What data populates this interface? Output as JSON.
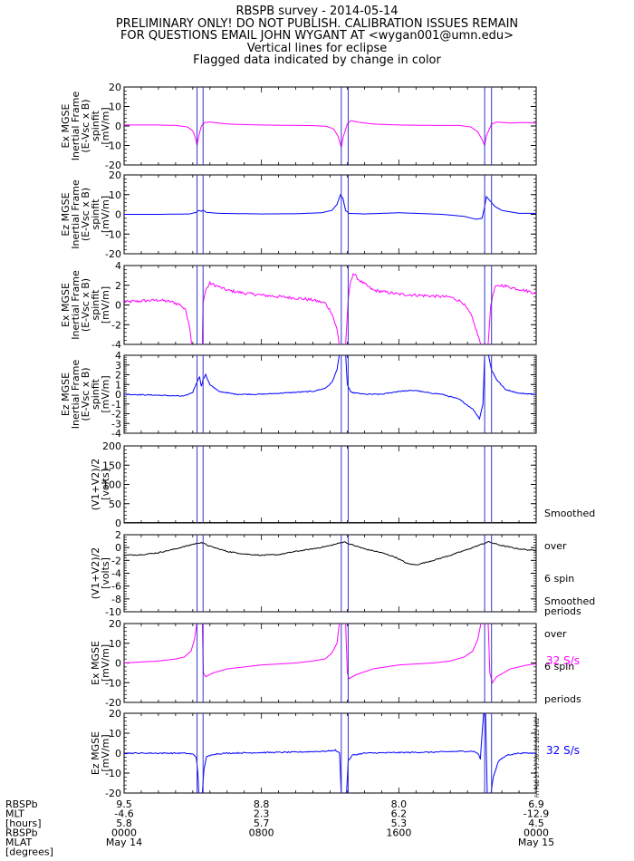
{
  "header": {
    "lines": [
      "RBSPB survey - 2014-05-14",
      "PRELIMINARY ONLY! DO NOT PUBLISH. CALIBRATION ISSUES REMAIN",
      "FOR QUESTIONS EMAIL JOHN WYGANT AT <wygan001@umn.edu>",
      "Vertical lines for eclipse",
      "Flagged data indicated by change in color"
    ]
  },
  "colors": {
    "magenta": "#ff00ff",
    "blue": "#0000ff",
    "black": "#000000",
    "eclipse": "#3333cc"
  },
  "side_notes": {
    "smoothed_1": [
      "Smoothed",
      "over",
      "6 spin",
      "periods"
    ],
    "smoothed_2": [
      "Smoothed",
      "over",
      "6 spin",
      "periods"
    ],
    "rate_1": "32 S/s",
    "rate_2": "32 S/s"
  },
  "stamp": "Fri Feb 27 17:50:31 2015 v02",
  "bottom_labels": [
    "RBSPb",
    "MLT",
    "[hours]",
    "RBSPb",
    "MLAT",
    "[degrees]"
  ],
  "chart_data": {
    "type": "line",
    "x_unit": "hours UT on 2014-05-14",
    "xlim": [
      0,
      24
    ],
    "eclipses": [
      [
        4.25,
        4.6
      ],
      [
        12.65,
        13.05
      ],
      [
        21.0,
        21.4
      ]
    ],
    "x_ticks": [
      {
        "x": 0,
        "l1": "9.5",
        "l2": "-4.6",
        "l3": "5.8",
        "l4": "0000",
        "l5": "May 14"
      },
      {
        "x": 8,
        "l1": "8.8",
        "l2": "2.3",
        "l3": "5.7",
        "l4": "0800",
        "l5": ""
      },
      {
        "x": 16,
        "l1": "8.0",
        "l2": "6.2",
        "l3": "5.3",
        "l4": "1600",
        "l5": ""
      },
      {
        "x": 24,
        "l1": "6.9",
        "l2": "-12.9",
        "l3": "4.5",
        "l4": "0000",
        "l5": "May 15"
      }
    ],
    "panels": [
      {
        "ylabel": [
          "Ex MGSE",
          "Inertial Frame",
          "(E-Vsc x B)",
          "spinfit",
          "[mV/m]"
        ],
        "ylim": [
          -20,
          20
        ],
        "yticks": [
          -20,
          -10,
          0,
          10,
          20
        ],
        "color": "#ff00ff",
        "points": [
          [
            0,
            0.5
          ],
          [
            1,
            0.5
          ],
          [
            2,
            0.5
          ],
          [
            3,
            0.3
          ],
          [
            3.7,
            -0.5
          ],
          [
            4.0,
            -2.5
          ],
          [
            4.15,
            -6
          ],
          [
            4.25,
            -10
          ],
          [
            4.35,
            -5
          ],
          [
            4.5,
            0
          ],
          [
            4.7,
            1.8
          ],
          [
            5.0,
            2
          ],
          [
            6,
            1
          ],
          [
            8,
            0.5
          ],
          [
            10,
            0.3
          ],
          [
            11,
            0.2
          ],
          [
            11.8,
            -0.2
          ],
          [
            12.2,
            -1.5
          ],
          [
            12.45,
            -5
          ],
          [
            12.65,
            -11
          ],
          [
            12.75,
            -6
          ],
          [
            13.0,
            1
          ],
          [
            13.2,
            2.8
          ],
          [
            13.6,
            2
          ],
          [
            14.5,
            1
          ],
          [
            16,
            0.5
          ],
          [
            18,
            0.3
          ],
          [
            19.5,
            0.3
          ],
          [
            20.2,
            -0.5
          ],
          [
            20.6,
            -3
          ],
          [
            20.85,
            -7
          ],
          [
            21.0,
            -10
          ],
          [
            21.1,
            -5
          ],
          [
            21.4,
            1
          ],
          [
            21.7,
            2
          ],
          [
            22.5,
            1.5
          ],
          [
            23.3,
            1.8
          ],
          [
            24,
            1.5
          ]
        ]
      },
      {
        "ylabel": [
          "Ez MGSE",
          "Inertial Frame",
          "(E-Vsc x B)",
          "spinfit",
          "[mV/m]"
        ],
        "ylim": [
          -20,
          20
        ],
        "yticks": [
          -20,
          -10,
          0,
          10,
          20
        ],
        "color": "#0000ff",
        "points": [
          [
            0,
            0
          ],
          [
            2,
            0
          ],
          [
            3.8,
            0.2
          ],
          [
            4.2,
            1
          ],
          [
            4.35,
            2
          ],
          [
            4.5,
            1.5
          ],
          [
            4.6,
            2.2
          ],
          [
            4.8,
            1
          ],
          [
            5.5,
            0.5
          ],
          [
            8,
            0.2
          ],
          [
            10,
            0.3
          ],
          [
            11.5,
            0.8
          ],
          [
            12.1,
            2
          ],
          [
            12.4,
            5
          ],
          [
            12.6,
            10
          ],
          [
            12.75,
            8
          ],
          [
            12.9,
            2
          ],
          [
            13.1,
            0.5
          ],
          [
            14,
            0.2
          ],
          [
            16,
            0.8
          ],
          [
            17,
            0.5
          ],
          [
            18.5,
            0
          ],
          [
            19.8,
            -1
          ],
          [
            20.5,
            -2.5
          ],
          [
            20.85,
            -2
          ],
          [
            21.0,
            4
          ],
          [
            21.1,
            9
          ],
          [
            21.3,
            7
          ],
          [
            21.6,
            4
          ],
          [
            22,
            2
          ],
          [
            23,
            0.5
          ],
          [
            24,
            0.5
          ]
        ]
      },
      {
        "ylabel": [
          "Ex MGSE",
          "Inertial Frame",
          "(E-Vsc x B)",
          "spinfit",
          "[mV/m]"
        ],
        "ylim": [
          -4,
          4
        ],
        "yticks": [
          -4,
          -2,
          0,
          2,
          4
        ],
        "color": "#ff00ff",
        "noise": 0.15,
        "points": [
          [
            0,
            0.3
          ],
          [
            1,
            0.4
          ],
          [
            2,
            0.5
          ],
          [
            2.8,
            0.3
          ],
          [
            3.3,
            0
          ],
          [
            3.6,
            -0.6
          ],
          [
            3.8,
            -2
          ],
          [
            3.95,
            -4.2
          ],
          [
            4.2,
            -4.2
          ],
          [
            4.55,
            -4.2
          ],
          [
            4.6,
            0.2
          ],
          [
            4.75,
            1.5
          ],
          [
            5.0,
            2.2
          ],
          [
            5.3,
            2
          ],
          [
            6,
            1.5
          ],
          [
            7,
            1.2
          ],
          [
            8,
            1
          ],
          [
            10,
            0.7
          ],
          [
            11,
            0.5
          ],
          [
            11.7,
            0.2
          ],
          [
            12.1,
            -0.8
          ],
          [
            12.4,
            -2.5
          ],
          [
            12.55,
            -4.2
          ],
          [
            12.9,
            -4.2
          ],
          [
            13.05,
            0.5
          ],
          [
            13.2,
            2.5
          ],
          [
            13.35,
            3.2
          ],
          [
            13.7,
            2.5
          ],
          [
            14.5,
            1.5
          ],
          [
            16,
            1.1
          ],
          [
            18,
            0.9
          ],
          [
            19,
            0.8
          ],
          [
            19.7,
            0.3
          ],
          [
            20.2,
            -1
          ],
          [
            20.6,
            -3
          ],
          [
            20.8,
            -4.2
          ],
          [
            21.2,
            -4.2
          ],
          [
            21.35,
            0
          ],
          [
            21.6,
            1.8
          ],
          [
            22,
            2
          ],
          [
            23,
            1.6
          ],
          [
            24,
            1.2
          ]
        ]
      },
      {
        "ylabel": [
          "Ez MGSE",
          "Inertial Frame",
          "(E-Vsc x B)",
          "spinfit",
          "[mV/m]"
        ],
        "ylim": [
          -4,
          4
        ],
        "yticks": [
          -4,
          -3,
          -2,
          -1,
          0,
          1,
          2,
          3,
          4
        ],
        "color": "#0000ff",
        "noise": 0.05,
        "points": [
          [
            0,
            0
          ],
          [
            2,
            -0.1
          ],
          [
            3.5,
            -0.2
          ],
          [
            4.0,
            0.2
          ],
          [
            4.25,
            1.3
          ],
          [
            4.4,
            1.8
          ],
          [
            4.5,
            0.8
          ],
          [
            4.6,
            1.5
          ],
          [
            4.75,
            2
          ],
          [
            5.0,
            1
          ],
          [
            5.5,
            0.3
          ],
          [
            6.5,
            0
          ],
          [
            8,
            0
          ],
          [
            10,
            0.2
          ],
          [
            11,
            0.3
          ],
          [
            11.7,
            0.6
          ],
          [
            12.1,
            1.2
          ],
          [
            12.4,
            2.5
          ],
          [
            12.55,
            4.2
          ],
          [
            12.9,
            4.2
          ],
          [
            13.0,
            1
          ],
          [
            13.2,
            0.2
          ],
          [
            14,
            0
          ],
          [
            15,
            0
          ],
          [
            16,
            0.3
          ],
          [
            17,
            0.4
          ],
          [
            17.5,
            0.2
          ],
          [
            18.5,
            0
          ],
          [
            19.5,
            -0.5
          ],
          [
            20.3,
            -1.5
          ],
          [
            20.7,
            -2.5
          ],
          [
            20.9,
            -1
          ],
          [
            21.0,
            4.2
          ],
          [
            21.2,
            4.2
          ],
          [
            21.4,
            2.5
          ],
          [
            21.7,
            1.5
          ],
          [
            22.2,
            0.5
          ],
          [
            23,
            0.1
          ],
          [
            24,
            0
          ]
        ]
      },
      {
        "ylabel": [
          "(V1+V2)/2",
          "[volts]"
        ],
        "ylim": [
          0,
          200
        ],
        "yticks": [
          0,
          50,
          100,
          150,
          200
        ],
        "color": "#000000",
        "points": [
          [
            0,
            1
          ],
          [
            24,
            1
          ]
        ]
      },
      {
        "ylabel": [
          "(V1+V2)/2",
          "[volts]"
        ],
        "ylim": [
          -10,
          2
        ],
        "yticks": [
          -10,
          -8,
          -6,
          -4,
          -2,
          0,
          2
        ],
        "color": "#000000",
        "noise": 0.08,
        "points": [
          [
            0,
            -1.2
          ],
          [
            1,
            -1.1
          ],
          [
            2,
            -0.8
          ],
          [
            3,
            -0.2
          ],
          [
            4,
            0.5
          ],
          [
            4.5,
            0.8
          ],
          [
            5,
            0.2
          ],
          [
            6,
            -0.6
          ],
          [
            7,
            -1
          ],
          [
            8,
            -1.2
          ],
          [
            9,
            -1.1
          ],
          [
            10,
            -0.6
          ],
          [
            11,
            -0.2
          ],
          [
            12,
            0.3
          ],
          [
            12.8,
            0.9
          ],
          [
            13.2,
            0.5
          ],
          [
            14,
            -0.2
          ],
          [
            15,
            -0.8
          ],
          [
            15.8,
            -1.5
          ],
          [
            16.5,
            -2.5
          ],
          [
            17,
            -2.7
          ],
          [
            18,
            -2
          ],
          [
            19,
            -1.2
          ],
          [
            20,
            -0.3
          ],
          [
            20.8,
            0.5
          ],
          [
            21.2,
            0.9
          ],
          [
            22,
            0.3
          ],
          [
            23,
            -0.2
          ],
          [
            24,
            -0.5
          ]
        ]
      },
      {
        "ylabel": [
          "Ex MGSE",
          "[mV/m]"
        ],
        "ylim": [
          -20,
          20
        ],
        "yticks": [
          -20,
          -10,
          0,
          10,
          20
        ],
        "color": "#ff00ff",
        "points": [
          [
            0,
            0
          ],
          [
            1,
            0.5
          ],
          [
            2,
            1
          ],
          [
            3,
            2
          ],
          [
            3.5,
            3
          ],
          [
            3.9,
            6
          ],
          [
            4.1,
            12
          ],
          [
            4.25,
            21
          ],
          [
            4.55,
            21
          ],
          [
            4.62,
            -5
          ],
          [
            4.75,
            -7
          ],
          [
            5.2,
            -5
          ],
          [
            6,
            -3
          ],
          [
            8,
            -1
          ],
          [
            10,
            0
          ],
          [
            11,
            1
          ],
          [
            11.7,
            2
          ],
          [
            12.1,
            5
          ],
          [
            12.4,
            10
          ],
          [
            12.55,
            21
          ],
          [
            12.9,
            21
          ],
          [
            13.0,
            -5
          ],
          [
            13.1,
            -8
          ],
          [
            13.5,
            -6
          ],
          [
            14.5,
            -3
          ],
          [
            16,
            -1
          ],
          [
            18,
            0
          ],
          [
            19,
            1
          ],
          [
            19.8,
            3
          ],
          [
            20.3,
            6
          ],
          [
            20.6,
            12
          ],
          [
            20.8,
            21
          ],
          [
            21.2,
            21
          ],
          [
            21.3,
            -5
          ],
          [
            21.45,
            -10
          ],
          [
            21.7,
            -7
          ],
          [
            22.5,
            -3
          ],
          [
            23.5,
            -1
          ],
          [
            24,
            -0.5
          ]
        ]
      },
      {
        "ylabel": [
          "Ez MGSE",
          "[mV/m]"
        ],
        "ylim": [
          -20,
          20
        ],
        "yticks": [
          -20,
          -10,
          0,
          10,
          20
        ],
        "color": "#0000ff",
        "noise": 0.3,
        "points": [
          [
            0,
            0
          ],
          [
            2,
            0
          ],
          [
            3.5,
            0
          ],
          [
            4.0,
            -0.5
          ],
          [
            4.2,
            -2
          ],
          [
            4.3,
            -10
          ],
          [
            4.35,
            -21
          ],
          [
            4.55,
            -21
          ],
          [
            4.65,
            -8
          ],
          [
            4.8,
            -2
          ],
          [
            5.2,
            -0.5
          ],
          [
            6,
            0
          ],
          [
            8,
            0.3
          ],
          [
            10,
            0.5
          ],
          [
            11,
            0.8
          ],
          [
            11.8,
            1
          ],
          [
            12.3,
            1.5
          ],
          [
            12.55,
            0
          ],
          [
            12.65,
            -21
          ],
          [
            12.95,
            -21
          ],
          [
            13.05,
            -4
          ],
          [
            13.3,
            -1
          ],
          [
            14,
            0
          ],
          [
            16,
            0.3
          ],
          [
            18,
            0.5
          ],
          [
            19,
            0.8
          ],
          [
            20.3,
            1
          ],
          [
            20.6,
            0
          ],
          [
            20.75,
            -3
          ],
          [
            20.85,
            10
          ],
          [
            20.95,
            21
          ],
          [
            21.05,
            21
          ],
          [
            21.15,
            -21
          ],
          [
            21.35,
            -21
          ],
          [
            21.5,
            -12
          ],
          [
            21.8,
            -4
          ],
          [
            22.3,
            -1
          ],
          [
            23,
            0
          ],
          [
            24,
            0
          ]
        ]
      }
    ]
  }
}
